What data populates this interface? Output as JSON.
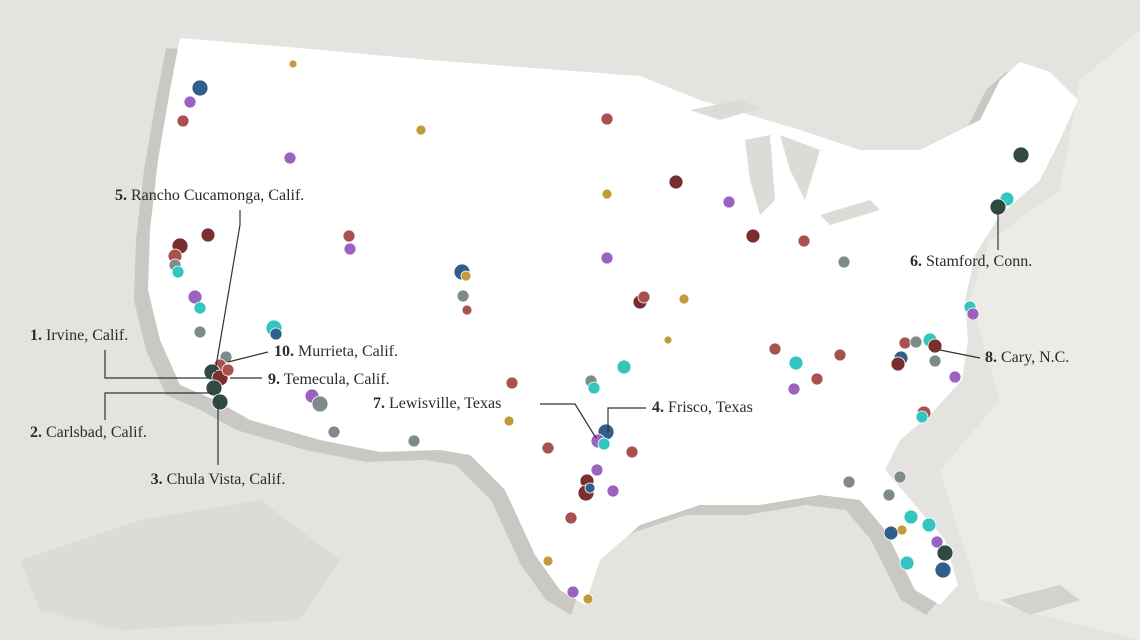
{
  "labels": [
    {
      "rank": "1.",
      "name": "Irvine, Calif."
    },
    {
      "rank": "2.",
      "name": "Carlsbad, Calif."
    },
    {
      "rank": "3.",
      "name": "Chula Vista, Calif."
    },
    {
      "rank": "4.",
      "name": "Frisco, Texas"
    },
    {
      "rank": "5.",
      "name": "Rancho Cucamonga, Calif."
    },
    {
      "rank": "6.",
      "name": "Stamford, Conn."
    },
    {
      "rank": "7.",
      "name": "Lewisville, Texas"
    },
    {
      "rank": "8.",
      "name": "Cary, N.C."
    },
    {
      "rank": "9.",
      "name": "Temecula, Calif."
    },
    {
      "rank": "10.",
      "name": "Murrieta, Calif."
    }
  ]
}
